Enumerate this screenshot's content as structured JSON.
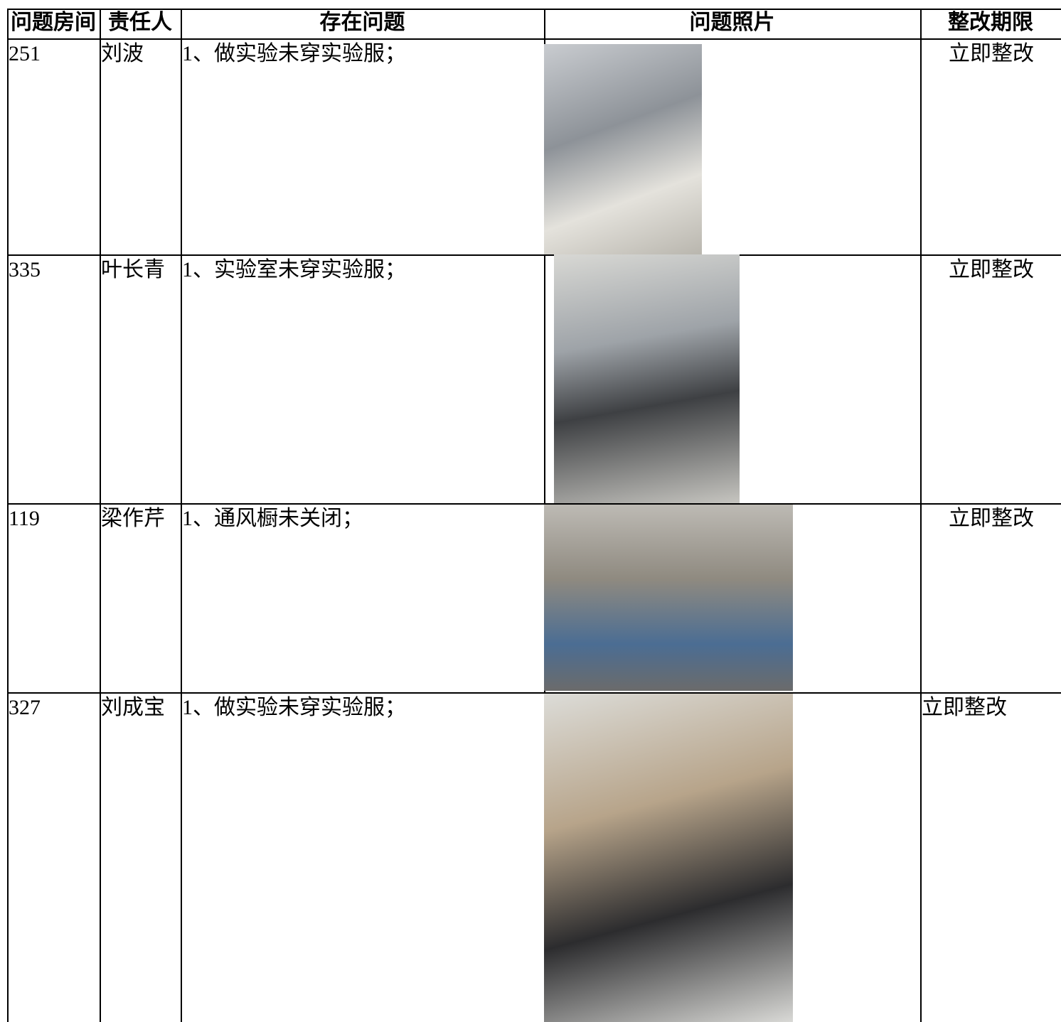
{
  "table": {
    "header": [
      "问题房间",
      "责任人",
      "存在问题",
      "问题照片",
      "整改期限"
    ],
    "rows": [
      {
        "room": "251",
        "person": "刘波",
        "issue": "1、做实验未穿实验服；",
        "deadline": "立即整改"
      },
      {
        "room": "335",
        "person": "叶长青",
        "issue": "1、实验室未穿实验服；",
        "deadline": "立即整改"
      },
      {
        "room": "119",
        "person": "梁作芹",
        "issue": "1、通风橱未关闭；",
        "deadline": "立即整改"
      },
      {
        "room": "327",
        "person": "刘成宝",
        "issue": "1、做实验未穿实验服；",
        "deadline": "立即整改"
      }
    ]
  }
}
